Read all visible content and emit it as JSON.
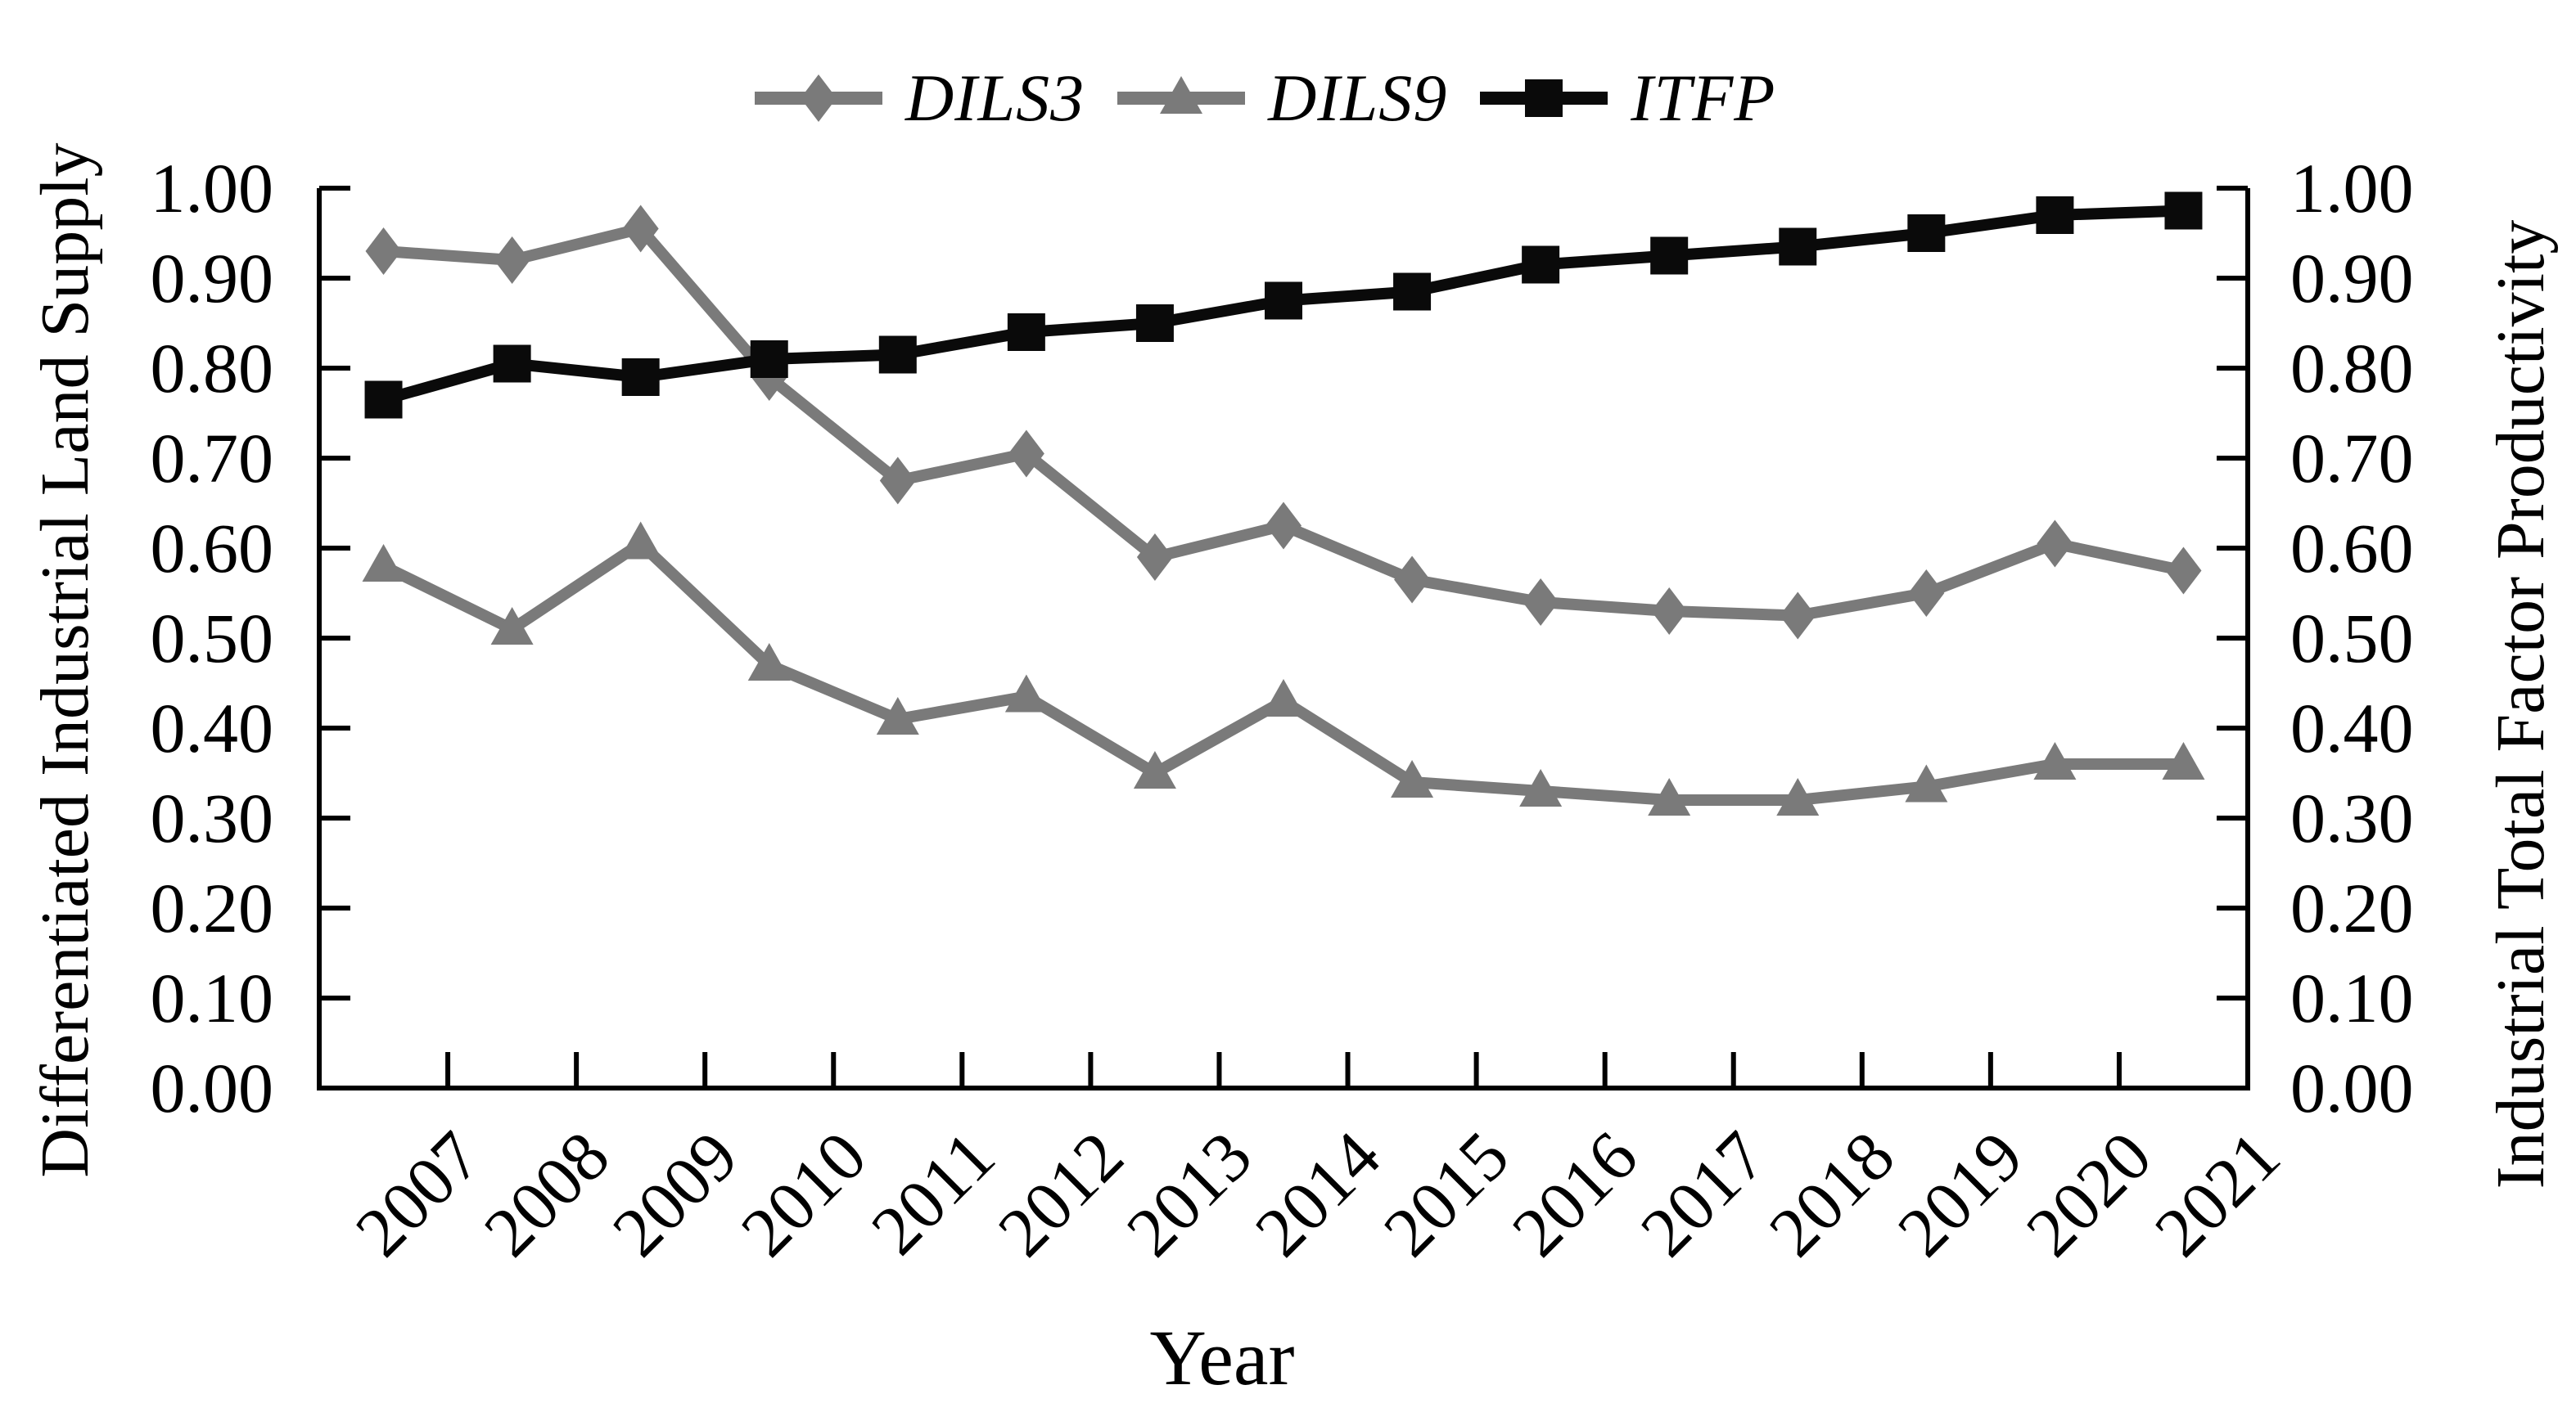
{
  "chart_data": {
    "type": "line",
    "title": "",
    "xlabel": "Year",
    "ylabel_left": "Differentiated Industrial Land Supply",
    "ylabel_right": "Industrial Total Factor Productivity",
    "categories": [
      "2007",
      "2008",
      "2009",
      "2010",
      "2011",
      "2012",
      "2013",
      "2014",
      "2015",
      "2016",
      "2017",
      "2018",
      "2019",
      "2020",
      "2021"
    ],
    "y_ticks": [
      "0.00",
      "0.10",
      "0.20",
      "0.30",
      "0.40",
      "0.50",
      "0.60",
      "0.70",
      "0.80",
      "0.90",
      "1.00"
    ],
    "ylim": [
      0.0,
      1.0
    ],
    "grid": false,
    "legend_position": "top-center",
    "axis_color": "#000000",
    "series": [
      {
        "name": "DILS3",
        "marker": "diamond",
        "color": "#7a7a7a",
        "values": [
          0.93,
          0.92,
          0.955,
          0.79,
          0.675,
          0.705,
          0.59,
          0.625,
          0.565,
          0.54,
          0.53,
          0.525,
          0.55,
          0.605,
          0.575
        ]
      },
      {
        "name": "DILS9",
        "marker": "triangle",
        "color": "#7a7a7a",
        "values": [
          0.58,
          0.51,
          0.605,
          0.47,
          0.41,
          0.435,
          0.35,
          0.43,
          0.34,
          0.33,
          0.32,
          0.32,
          0.335,
          0.36,
          0.36
        ]
      },
      {
        "name": "ITFP",
        "marker": "square",
        "color": "#0a0a0a",
        "values": [
          0.765,
          0.805,
          0.79,
          0.81,
          0.815,
          0.84,
          0.85,
          0.875,
          0.885,
          0.915,
          0.925,
          0.935,
          0.95,
          0.97,
          0.975
        ]
      }
    ]
  }
}
